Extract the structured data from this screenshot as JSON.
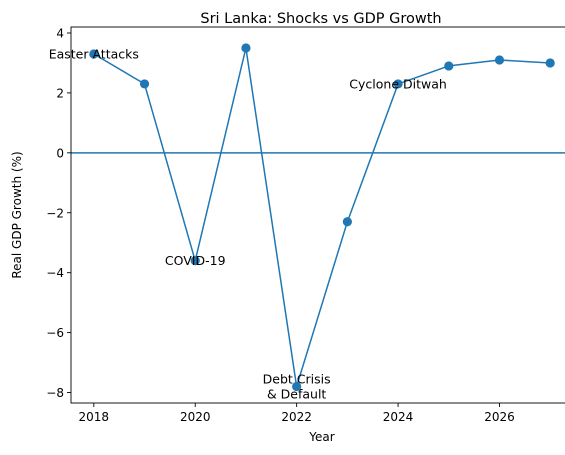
{
  "chart_data": {
    "type": "line",
    "title": "Sri Lanka: Shocks vs GDP Growth",
    "xlabel": "Year",
    "ylabel": "Real GDP Growth (%)",
    "xlim": [
      2017.55,
      2027.45
    ],
    "ylim": [
      -8.35,
      4.2
    ],
    "x_ticks": [
      2018,
      2020,
      2022,
      2024,
      2026
    ],
    "y_ticks": [
      4,
      2,
      0,
      -2,
      -4,
      -6,
      -8
    ],
    "x_tick_labels": [
      "2018",
      "2020",
      "2022",
      "2024",
      "2026"
    ],
    "y_tick_labels": [
      "4",
      "2",
      "0",
      "−2",
      "−4",
      "−6",
      "−8"
    ],
    "grid": false,
    "color": "#1f77b4",
    "reference_line": {
      "y": 0
    },
    "series": [
      {
        "x": [
          2018,
          2019,
          2020,
          2021,
          2022,
          2023,
          2024,
          2025,
          2026,
          2027
        ],
        "y": [
          3.3,
          2.3,
          -3.6,
          3.5,
          -7.8,
          -2.3,
          2.3,
          2.9,
          3.1,
          3.0
        ]
      }
    ],
    "annotations": [
      {
        "x": 2018,
        "y": 3.3,
        "lines": [
          "Easter Attacks"
        ]
      },
      {
        "x": 2020,
        "y": -3.6,
        "lines": [
          "COVID-19"
        ]
      },
      {
        "x": 2022,
        "y": -7.8,
        "lines": [
          "Debt Crisis",
          "& Default"
        ]
      },
      {
        "x": 2024,
        "y": 2.3,
        "lines": [
          "Cyclone Ditwah"
        ]
      }
    ]
  }
}
